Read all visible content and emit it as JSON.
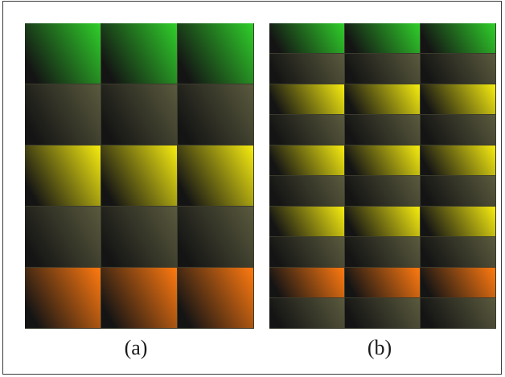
{
  "captions": {
    "a": "(a)",
    "b": "(b)"
  },
  "colors": {
    "green": "#2fcf2a",
    "dim": "#5a5a3e",
    "yellow": "#f6ec10",
    "orange": "#ff7a10",
    "dark": "#141414",
    "separator": "#3b3b2c"
  },
  "panels": {
    "a": {
      "columns": 3,
      "rows": [
        "green",
        "dim",
        "yellow",
        "dim",
        "orange"
      ]
    },
    "b": {
      "columns": 3,
      "rows": [
        "green",
        "dim",
        "yellow",
        "dim",
        "yellow",
        "dim",
        "yellow",
        "dim",
        "orange",
        "dim"
      ]
    }
  }
}
